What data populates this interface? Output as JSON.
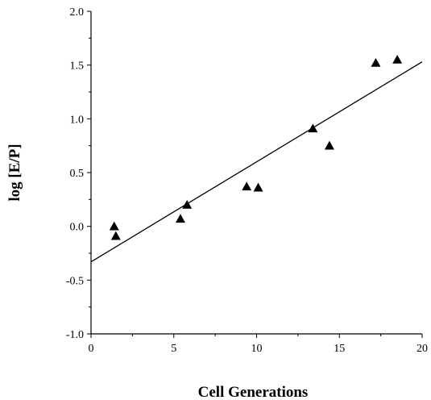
{
  "chart_data": {
    "type": "scatter",
    "xlabel": "Cell Generations",
    "ylabel": "log [E/P]",
    "xlim": [
      0,
      20
    ],
    "ylim": [
      -1.0,
      2.0
    ],
    "x_ticks": [
      0,
      5,
      10,
      15,
      20
    ],
    "x_tick_labels": [
      "0",
      "5",
      "10",
      "15",
      "20"
    ],
    "y_ticks": [
      2.0,
      1.5,
      1.0,
      0.5,
      0.0,
      -0.5,
      -1.0
    ],
    "y_tick_labels": [
      "2.0",
      "1.5",
      "1.0",
      "0.5",
      "0.0",
      "-0.5",
      "-1.0"
    ],
    "marker": "triangle",
    "grid": false,
    "series": [
      {
        "points": [
          {
            "x": 1.4,
            "y": 0.0
          },
          {
            "x": 1.5,
            "y": -0.09
          },
          {
            "x": 5.4,
            "y": 0.07
          },
          {
            "x": 5.8,
            "y": 0.2
          },
          {
            "x": 9.4,
            "y": 0.37
          },
          {
            "x": 10.1,
            "y": 0.36
          },
          {
            "x": 13.4,
            "y": 0.91
          },
          {
            "x": 14.4,
            "y": 0.75
          },
          {
            "x": 17.2,
            "y": 1.52
          },
          {
            "x": 18.5,
            "y": 1.55
          }
        ]
      }
    ],
    "trendline": {
      "x": [
        0,
        20
      ],
      "y": [
        -0.33,
        1.53
      ]
    },
    "colors": {
      "marker": "#000000",
      "line": "#000000",
      "axis": "#000000"
    }
  }
}
